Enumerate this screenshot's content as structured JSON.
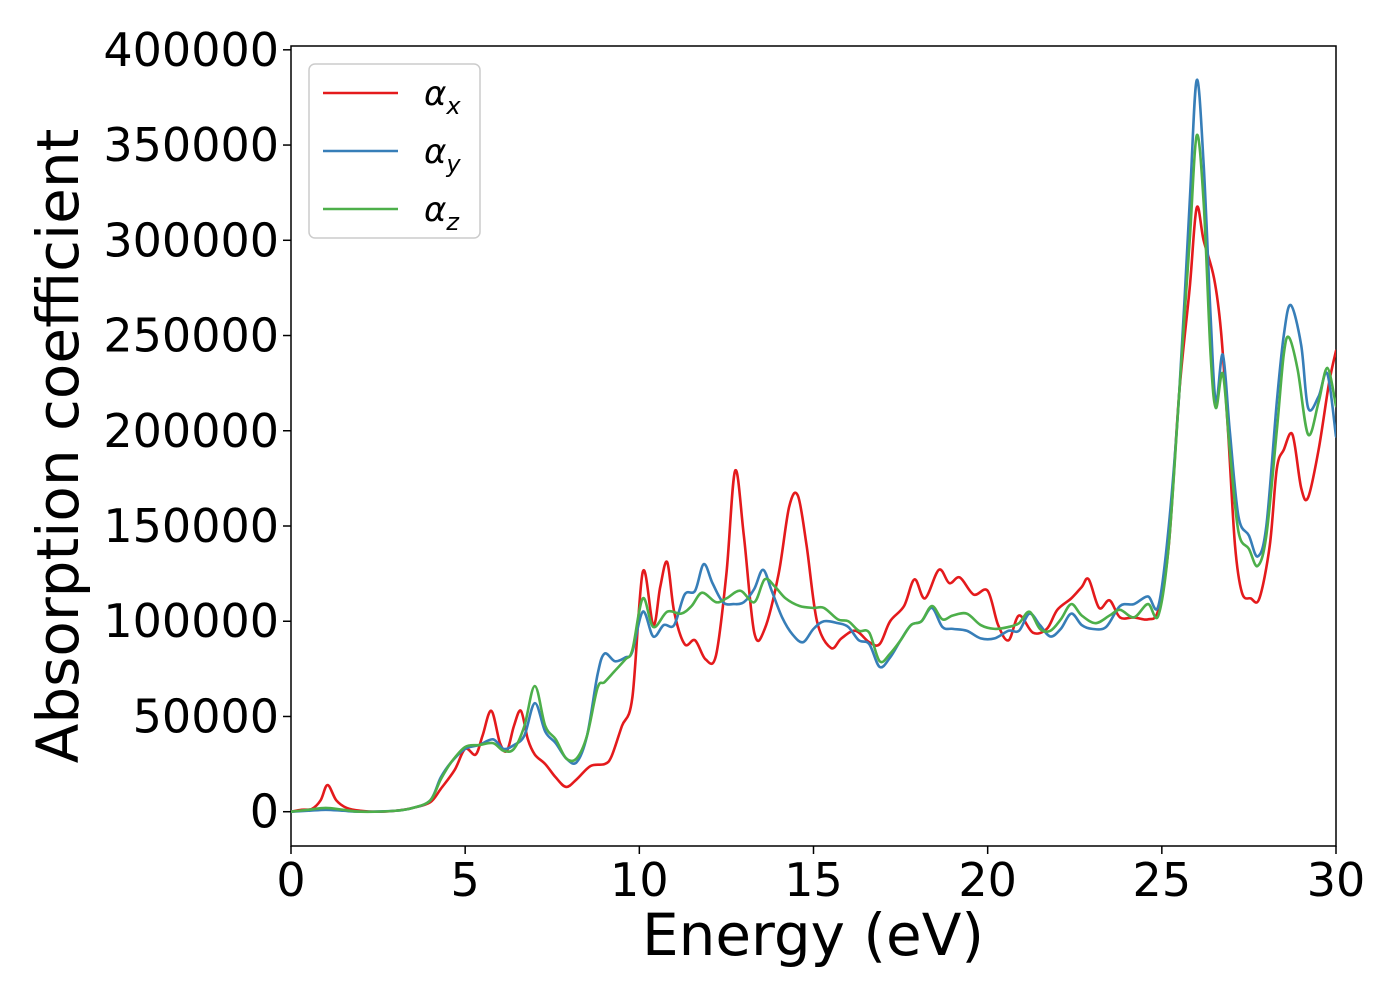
{
  "chart_data": {
    "type": "line",
    "xlabel": "Energy (eV)",
    "ylabel": "Absorption coefficient",
    "xlim": [
      0,
      30
    ],
    "ylim": [
      -18000,
      402000
    ],
    "xticks": [
      0,
      5,
      10,
      15,
      20,
      25,
      30
    ],
    "yticks": [
      0,
      50000,
      100000,
      150000,
      200000,
      250000,
      300000,
      350000,
      400000
    ],
    "grid": false,
    "legend_position": "top-left",
    "series": [
      {
        "name": "αx",
        "symbol": "α",
        "subscript": "x",
        "color": "#e41a1c",
        "points": [
          [
            0,
            0
          ],
          [
            0.3,
            1000
          ],
          [
            0.6,
            1500
          ],
          [
            0.85,
            6000
          ],
          [
            1.05,
            14000
          ],
          [
            1.3,
            6000
          ],
          [
            1.6,
            2000
          ],
          [
            2,
            500
          ],
          [
            2.5,
            0
          ],
          [
            3,
            500
          ],
          [
            3.5,
            2000
          ],
          [
            4,
            5000
          ],
          [
            4.3,
            12000
          ],
          [
            4.7,
            22000
          ],
          [
            5,
            33000
          ],
          [
            5.3,
            30000
          ],
          [
            5.5,
            40000
          ],
          [
            5.75,
            53000
          ],
          [
            6,
            36000
          ],
          [
            6.2,
            32000
          ],
          [
            6.4,
            45000
          ],
          [
            6.6,
            53000
          ],
          [
            6.8,
            38000
          ],
          [
            7,
            30000
          ],
          [
            7.3,
            25000
          ],
          [
            7.6,
            18000
          ],
          [
            7.9,
            13000
          ],
          [
            8.2,
            17000
          ],
          [
            8.6,
            24000
          ],
          [
            9,
            25000
          ],
          [
            9.2,
            29000
          ],
          [
            9.5,
            45000
          ],
          [
            9.8,
            60000
          ],
          [
            10.1,
            126000
          ],
          [
            10.4,
            98000
          ],
          [
            10.6,
            118000
          ],
          [
            10.8,
            131000
          ],
          [
            11,
            105000
          ],
          [
            11.3,
            88000
          ],
          [
            11.6,
            90000
          ],
          [
            11.9,
            80000
          ],
          [
            12.2,
            82000
          ],
          [
            12.5,
            125000
          ],
          [
            12.75,
            179000
          ],
          [
            13,
            145000
          ],
          [
            13.3,
            94000
          ],
          [
            13.6,
            96000
          ],
          [
            14,
            125000
          ],
          [
            14.3,
            160000
          ],
          [
            14.55,
            166000
          ],
          [
            14.8,
            140000
          ],
          [
            15.1,
            100000
          ],
          [
            15.5,
            86000
          ],
          [
            15.8,
            91000
          ],
          [
            16.2,
            95000
          ],
          [
            16.6,
            89000
          ],
          [
            16.9,
            88000
          ],
          [
            17.2,
            100000
          ],
          [
            17.6,
            108000
          ],
          [
            17.9,
            122000
          ],
          [
            18.2,
            112000
          ],
          [
            18.6,
            127000
          ],
          [
            18.9,
            120000
          ],
          [
            19.2,
            123000
          ],
          [
            19.6,
            114000
          ],
          [
            20,
            116000
          ],
          [
            20.3,
            98000
          ],
          [
            20.6,
            90000
          ],
          [
            20.9,
            103000
          ],
          [
            21.3,
            94000
          ],
          [
            21.7,
            96000
          ],
          [
            22,
            106000
          ],
          [
            22.4,
            112000
          ],
          [
            22.7,
            118000
          ],
          [
            22.9,
            122000
          ],
          [
            23.2,
            107000
          ],
          [
            23.5,
            111000
          ],
          [
            23.8,
            102000
          ],
          [
            24.2,
            102000
          ],
          [
            24.6,
            101000
          ],
          [
            24.9,
            106000
          ],
          [
            25.2,
            140000
          ],
          [
            25.5,
            220000
          ],
          [
            25.8,
            275000
          ],
          [
            26,
            317000
          ],
          [
            26.2,
            300000
          ],
          [
            26.5,
            280000
          ],
          [
            26.7,
            252000
          ],
          [
            26.9,
            200000
          ],
          [
            27.1,
            140000
          ],
          [
            27.3,
            115000
          ],
          [
            27.55,
            112000
          ],
          [
            27.8,
            112000
          ],
          [
            28.1,
            140000
          ],
          [
            28.3,
            180000
          ],
          [
            28.5,
            190000
          ],
          [
            28.75,
            198000
          ],
          [
            29,
            170000
          ],
          [
            29.2,
            165000
          ],
          [
            29.5,
            190000
          ],
          [
            29.8,
            225000
          ],
          [
            30,
            242000
          ]
        ]
      },
      {
        "name": "αy",
        "symbol": "α",
        "subscript": "y",
        "color": "#377eb8",
        "points": [
          [
            0,
            0
          ],
          [
            0.5,
            500
          ],
          [
            1,
            1000
          ],
          [
            1.5,
            500
          ],
          [
            2,
            0
          ],
          [
            3,
            500
          ],
          [
            3.5,
            2000
          ],
          [
            4,
            6000
          ],
          [
            4.3,
            18000
          ],
          [
            4.6,
            26000
          ],
          [
            5,
            33000
          ],
          [
            5.4,
            35000
          ],
          [
            5.8,
            38000
          ],
          [
            6.1,
            33000
          ],
          [
            6.4,
            35000
          ],
          [
            6.7,
            40000
          ],
          [
            7,
            57000
          ],
          [
            7.3,
            42000
          ],
          [
            7.6,
            36000
          ],
          [
            7.9,
            28000
          ],
          [
            8.2,
            26000
          ],
          [
            8.5,
            40000
          ],
          [
            8.8,
            72000
          ],
          [
            9,
            83000
          ],
          [
            9.3,
            79000
          ],
          [
            9.6,
            81000
          ],
          [
            9.8,
            84000
          ],
          [
            10.1,
            105000
          ],
          [
            10.4,
            92000
          ],
          [
            10.7,
            98000
          ],
          [
            11,
            98000
          ],
          [
            11.3,
            114000
          ],
          [
            11.6,
            116000
          ],
          [
            11.85,
            130000
          ],
          [
            12.1,
            120000
          ],
          [
            12.4,
            110000
          ],
          [
            12.7,
            109000
          ],
          [
            13,
            110000
          ],
          [
            13.3,
            117000
          ],
          [
            13.55,
            127000
          ],
          [
            13.8,
            116000
          ],
          [
            14.1,
            102000
          ],
          [
            14.4,
            93000
          ],
          [
            14.7,
            89000
          ],
          [
            15,
            96000
          ],
          [
            15.3,
            100000
          ],
          [
            15.7,
            99000
          ],
          [
            16,
            97000
          ],
          [
            16.3,
            90000
          ],
          [
            16.6,
            88000
          ],
          [
            16.9,
            76000
          ],
          [
            17.2,
            81000
          ],
          [
            17.5,
            90000
          ],
          [
            17.8,
            98000
          ],
          [
            18.1,
            100000
          ],
          [
            18.4,
            107000
          ],
          [
            18.7,
            97000
          ],
          [
            19,
            96000
          ],
          [
            19.4,
            95000
          ],
          [
            19.8,
            91000
          ],
          [
            20.2,
            91000
          ],
          [
            20.6,
            95000
          ],
          [
            20.9,
            95000
          ],
          [
            21.2,
            104000
          ],
          [
            21.5,
            98000
          ],
          [
            21.8,
            92000
          ],
          [
            22.1,
            96000
          ],
          [
            22.4,
            104000
          ],
          [
            22.7,
            98000
          ],
          [
            23,
            96000
          ],
          [
            23.4,
            97000
          ],
          [
            23.8,
            108000
          ],
          [
            24.2,
            109000
          ],
          [
            24.6,
            113000
          ],
          [
            24.9,
            108000
          ],
          [
            25.2,
            150000
          ],
          [
            25.5,
            220000
          ],
          [
            25.8,
            320000
          ],
          [
            26,
            384000
          ],
          [
            26.2,
            340000
          ],
          [
            26.4,
            260000
          ],
          [
            26.55,
            215000
          ],
          [
            26.75,
            240000
          ],
          [
            26.95,
            200000
          ],
          [
            27.2,
            155000
          ],
          [
            27.5,
            145000
          ],
          [
            27.75,
            134000
          ],
          [
            28,
            150000
          ],
          [
            28.3,
            215000
          ],
          [
            28.5,
            250000
          ],
          [
            28.7,
            266000
          ],
          [
            29,
            245000
          ],
          [
            29.2,
            212000
          ],
          [
            29.5,
            218000
          ],
          [
            29.75,
            230000
          ],
          [
            30,
            197000
          ]
        ]
      },
      {
        "name": "αz",
        "symbol": "α",
        "subscript": "z",
        "color": "#4daf4a",
        "points": [
          [
            0,
            0
          ],
          [
            0.5,
            1000
          ],
          [
            1,
            2000
          ],
          [
            1.5,
            1000
          ],
          [
            2,
            0
          ],
          [
            3,
            500
          ],
          [
            3.5,
            2000
          ],
          [
            4,
            6000
          ],
          [
            4.3,
            17000
          ],
          [
            4.6,
            26000
          ],
          [
            5,
            34000
          ],
          [
            5.4,
            35000
          ],
          [
            5.8,
            36000
          ],
          [
            6.1,
            32000
          ],
          [
            6.4,
            33000
          ],
          [
            6.7,
            45000
          ],
          [
            7,
            66000
          ],
          [
            7.3,
            45000
          ],
          [
            7.6,
            38000
          ],
          [
            7.9,
            28000
          ],
          [
            8.2,
            28000
          ],
          [
            8.5,
            40000
          ],
          [
            8.8,
            65000
          ],
          [
            9,
            68000
          ],
          [
            9.3,
            74000
          ],
          [
            9.6,
            80000
          ],
          [
            9.8,
            85000
          ],
          [
            10.1,
            112000
          ],
          [
            10.4,
            97000
          ],
          [
            10.8,
            105000
          ],
          [
            11.2,
            104000
          ],
          [
            11.5,
            108000
          ],
          [
            11.8,
            115000
          ],
          [
            12.2,
            110000
          ],
          [
            12.5,
            112000
          ],
          [
            12.9,
            116000
          ],
          [
            13.3,
            110000
          ],
          [
            13.6,
            122000
          ],
          [
            13.9,
            118000
          ],
          [
            14.2,
            112000
          ],
          [
            14.6,
            108000
          ],
          [
            15,
            107000
          ],
          [
            15.3,
            107000
          ],
          [
            15.7,
            101000
          ],
          [
            16,
            100000
          ],
          [
            16.3,
            95000
          ],
          [
            16.6,
            94000
          ],
          [
            16.9,
            79000
          ],
          [
            17.2,
            83000
          ],
          [
            17.5,
            90000
          ],
          [
            17.8,
            98000
          ],
          [
            18.1,
            100000
          ],
          [
            18.4,
            108000
          ],
          [
            18.7,
            101000
          ],
          [
            19,
            103000
          ],
          [
            19.4,
            104000
          ],
          [
            19.8,
            98000
          ],
          [
            20.2,
            96000
          ],
          [
            20.6,
            97000
          ],
          [
            20.9,
            99000
          ],
          [
            21.2,
            105000
          ],
          [
            21.5,
            96000
          ],
          [
            21.8,
            95000
          ],
          [
            22.1,
            101000
          ],
          [
            22.4,
            109000
          ],
          [
            22.7,
            103000
          ],
          [
            23.1,
            99000
          ],
          [
            23.5,
            103000
          ],
          [
            23.8,
            106000
          ],
          [
            24.2,
            102000
          ],
          [
            24.6,
            109000
          ],
          [
            24.9,
            103000
          ],
          [
            25.2,
            140000
          ],
          [
            25.5,
            220000
          ],
          [
            25.8,
            300000
          ],
          [
            26,
            355000
          ],
          [
            26.2,
            320000
          ],
          [
            26.4,
            240000
          ],
          [
            26.55,
            212000
          ],
          [
            26.75,
            230000
          ],
          [
            26.95,
            190000
          ],
          [
            27.2,
            147000
          ],
          [
            27.5,
            138000
          ],
          [
            27.75,
            129000
          ],
          [
            28,
            145000
          ],
          [
            28.3,
            200000
          ],
          [
            28.5,
            240000
          ],
          [
            28.65,
            249000
          ],
          [
            28.9,
            232000
          ],
          [
            29.2,
            198000
          ],
          [
            29.5,
            215000
          ],
          [
            29.75,
            233000
          ],
          [
            30,
            213000
          ]
        ]
      }
    ]
  }
}
